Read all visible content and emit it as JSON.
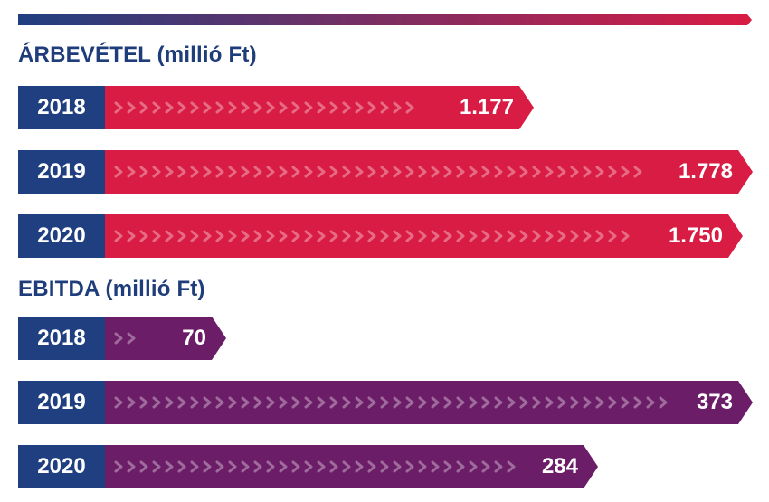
{
  "colors": {
    "year_tab": "#1f3f80",
    "revenue_bar": "#d91c44",
    "ebitda_bar": "#6b1d67",
    "title": "#1f3d7a",
    "gradient_start": "#1f3f80",
    "gradient_end": "#d91c44"
  },
  "chart_data": [
    {
      "type": "bar",
      "title": "ÁRBEVÉTEL (millió Ft)",
      "categories": [
        "2018",
        "2019",
        "2020"
      ],
      "values": [
        1177,
        1778,
        1750
      ],
      "value_labels": [
        "1.177",
        "1.778",
        "1.750"
      ],
      "xlim": [
        0,
        1778
      ]
    },
    {
      "type": "bar",
      "title": "EBITDA (millió Ft)",
      "categories": [
        "2018",
        "2019",
        "2020"
      ],
      "values": [
        70,
        373,
        284
      ],
      "value_labels": [
        "70",
        "373",
        "284"
      ],
      "xlim": [
        0,
        373
      ]
    }
  ]
}
